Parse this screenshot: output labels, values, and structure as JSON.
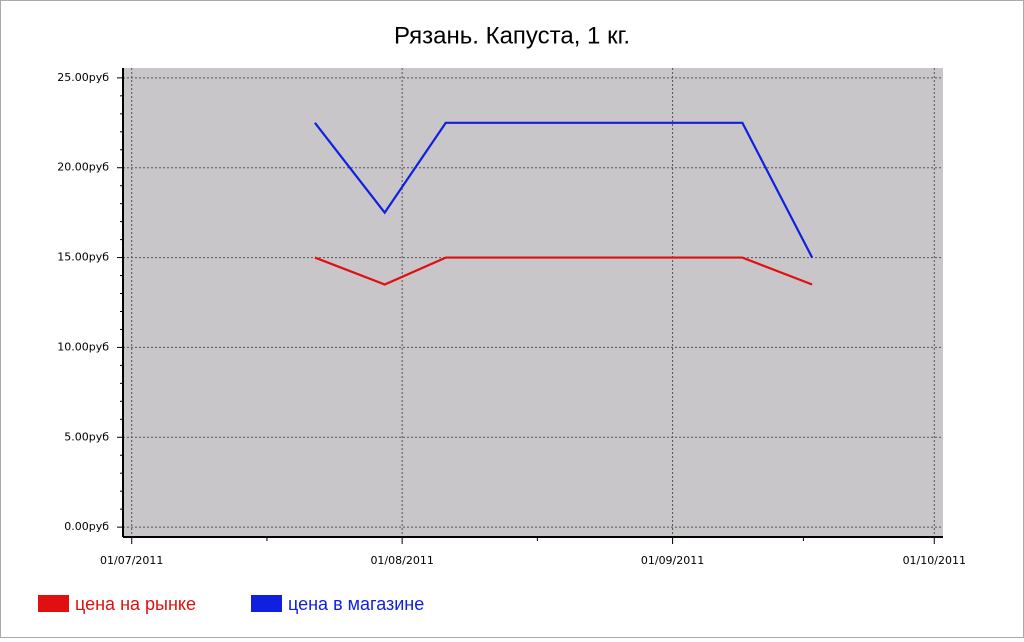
{
  "chart_data": {
    "type": "line",
    "title": "Рязань. Капуста, 1 кг.",
    "x": [
      "2011-07-22",
      "2011-07-30",
      "2011-08-06",
      "2011-08-13",
      "2011-08-20",
      "2011-08-27",
      "2011-09-02",
      "2011-09-09",
      "2011-09-17"
    ],
    "series": [
      {
        "name": "цена на рынке",
        "color": "#e01010",
        "values": [
          15,
          13.5,
          15,
          15,
          15,
          15,
          15,
          15,
          13.5
        ]
      },
      {
        "name": "цена в магазине",
        "color": "#1020e0",
        "values": [
          22.5,
          17.5,
          22.5,
          22.5,
          22.5,
          22.5,
          22.5,
          22.5,
          15
        ]
      }
    ],
    "xlim": [
      "2011-06-30",
      "2011-10-02"
    ],
    "xticks": [
      {
        "value": "2011-07-01",
        "label": "01/07/2011"
      },
      {
        "value": "2011-08-01",
        "label": "01/08/2011"
      },
      {
        "value": "2011-09-01",
        "label": "01/09/2011"
      },
      {
        "value": "2011-10-01",
        "label": "01/10/2011"
      }
    ],
    "ylim": [
      -0.55,
      25.55
    ],
    "yticks": [
      {
        "value": 0,
        "label": "0.00руб"
      },
      {
        "value": 5,
        "label": "5.00руб"
      },
      {
        "value": 10,
        "label": "10.00руб"
      },
      {
        "value": 15,
        "label": "15.00руб"
      },
      {
        "value": 20,
        "label": "20.00руб"
      },
      {
        "value": 25,
        "label": "25.00руб"
      }
    ],
    "grid": true,
    "legend": "bottom-left"
  }
}
